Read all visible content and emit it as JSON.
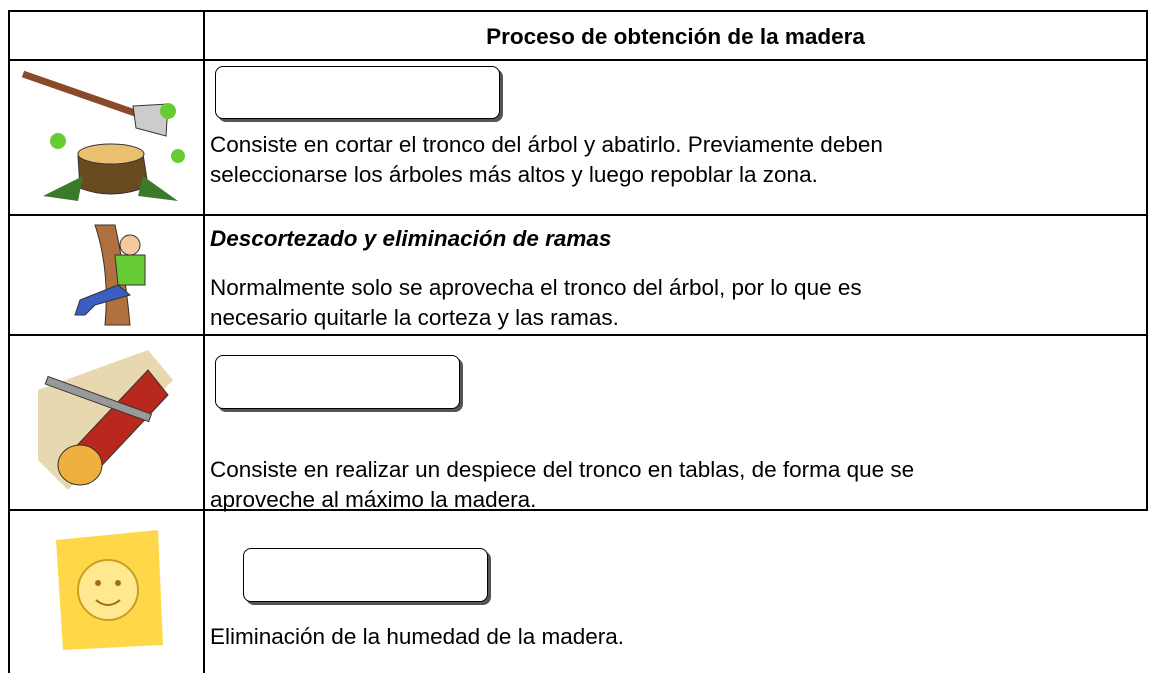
{
  "header": {
    "title": "Proceso de obtención de la madera"
  },
  "rows": [
    {
      "lines": [
        "Consiste en cortar el tronco del árbol y abatirlo. Previamente deben",
        "seleccionarse los árboles más altos y luego repoblar la zona."
      ]
    },
    {
      "title": "Descortezado y eliminación de ramas",
      "lines": [
        "Normalmente solo se aprovecha el tronco del árbol, por lo que es",
        "necesario quitarle la corteza y las ramas."
      ]
    },
    {
      "lines": [
        "Consiste en realizar un despiece del tronco en tablas, de forma que se",
        "aproveche al máximo la madera."
      ]
    },
    {
      "lines": [
        "Eliminación de la humedad de la madera."
      ]
    }
  ]
}
